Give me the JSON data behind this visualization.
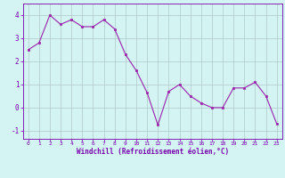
{
  "x": [
    0,
    1,
    2,
    3,
    4,
    5,
    6,
    7,
    8,
    9,
    10,
    11,
    12,
    13,
    14,
    15,
    16,
    17,
    18,
    19,
    20,
    21,
    22,
    23
  ],
  "y": [
    2.5,
    2.8,
    4.0,
    3.6,
    3.8,
    3.5,
    3.5,
    3.8,
    3.4,
    2.3,
    1.6,
    0.65,
    -0.75,
    0.7,
    1.0,
    0.5,
    0.2,
    0.0,
    0.0,
    0.85,
    0.85,
    1.1,
    0.5,
    -0.7
  ],
  "line_color": "#9922aa",
  "marker_color": "#9922aa",
  "bg_color": "#d4f4f4",
  "grid_color": "#b0c8c8",
  "xlabel": "Windchill (Refroidissement éolien,°C)",
  "xlim": [
    -0.5,
    23.5
  ],
  "ylim": [
    -1.35,
    4.5
  ],
  "yticks": [
    -1,
    0,
    1,
    2,
    3,
    4
  ],
  "xticks": [
    0,
    1,
    2,
    3,
    4,
    5,
    6,
    7,
    8,
    9,
    10,
    11,
    12,
    13,
    14,
    15,
    16,
    17,
    18,
    19,
    20,
    21,
    22,
    23
  ],
  "font_color": "#7700aa",
  "spine_color": "#7700aa"
}
